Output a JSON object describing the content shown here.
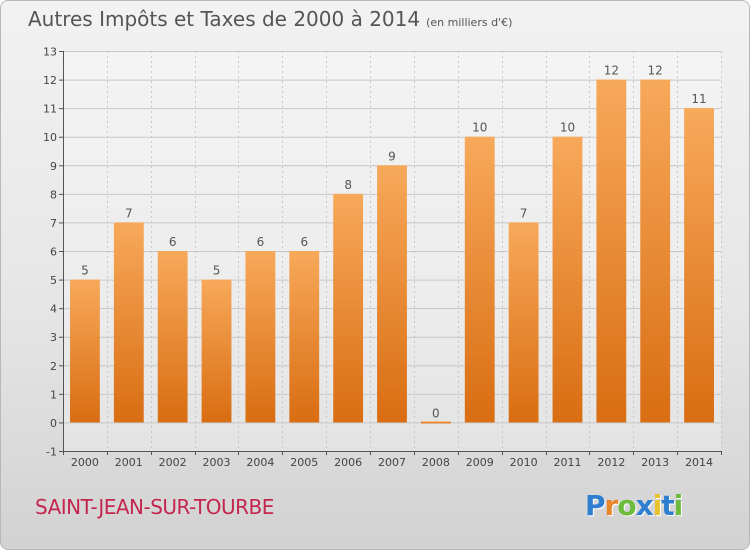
{
  "chart_data": {
    "type": "bar",
    "title": "Autres Impôts et Taxes de 2000 à 2014",
    "subtitle": "(en milliers d'€)",
    "categories": [
      "2000",
      "2001",
      "2002",
      "2003",
      "2004",
      "2005",
      "2006",
      "2007",
      "2008",
      "2009",
      "2010",
      "2011",
      "2012",
      "2013",
      "2014"
    ],
    "values": [
      5,
      7,
      6,
      5,
      6,
      6,
      8,
      9,
      0,
      10,
      7,
      10,
      12,
      12,
      11
    ],
    "ylim": [
      -1,
      13
    ],
    "yticks": [
      -1,
      0,
      1,
      2,
      3,
      4,
      5,
      6,
      7,
      8,
      9,
      10,
      11,
      12,
      13
    ],
    "grid": true,
    "bar_color": "#e8852a"
  },
  "place": "SAINT-JEAN-SUR-TOURBE",
  "brand": {
    "letters": [
      "P",
      "r",
      "o",
      "x",
      "i",
      "t",
      "i"
    ],
    "colors": [
      "#2f7fd0",
      "#e8852a",
      "#6dbb3c",
      "#2f7fd0",
      "#e8c22a",
      "#2f7fd0",
      "#6dbb3c"
    ]
  }
}
